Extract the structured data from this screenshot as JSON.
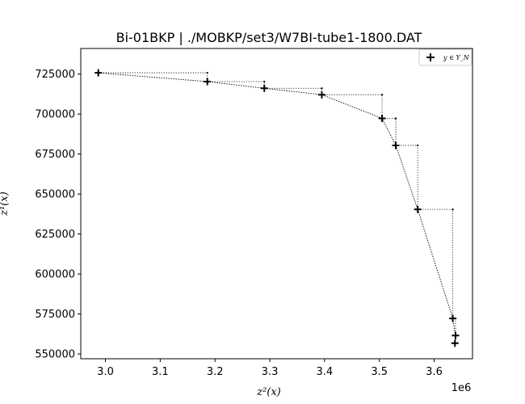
{
  "chart_data": {
    "type": "scatter",
    "title": "Bi-01BKP | ./MOBKP/set3/W7BI-tube1-1800.DAT",
    "xlabel": "z²(x)",
    "ylabel": "z¹(x)",
    "x_offset_label": "1e6",
    "xlim": [
      2.955,
      3.67
    ],
    "ylim": [
      547000,
      741000
    ],
    "x_ticks": [
      3.0,
      3.1,
      3.2,
      3.3,
      3.4,
      3.5,
      3.6
    ],
    "x_tick_labels": [
      "3.0",
      "3.1",
      "3.2",
      "3.3",
      "3.4",
      "3.5",
      "3.6"
    ],
    "y_ticks": [
      550000,
      575000,
      600000,
      625000,
      650000,
      675000,
      700000,
      725000
    ],
    "y_tick_labels": [
      "550000",
      "575000",
      "600000",
      "625000",
      "650000",
      "675000",
      "700000",
      "725000"
    ],
    "legend": {
      "label": "y ∈ Y_N",
      "placement": "top-right"
    },
    "series": [
      {
        "name": "y ∈ Y_N",
        "marker": "plus",
        "points": [
          {
            "x": 2.987,
            "y": 725800
          },
          {
            "x": 3.186,
            "y": 720300
          },
          {
            "x": 3.29,
            "y": 716100
          },
          {
            "x": 3.395,
            "y": 712100
          },
          {
            "x": 3.505,
            "y": 697300
          },
          {
            "x": 3.53,
            "y": 680400
          },
          {
            "x": 3.57,
            "y": 640400
          },
          {
            "x": 3.634,
            "y": 572200
          },
          {
            "x": 3.639,
            "y": 561500
          },
          {
            "x": 3.638,
            "y": 556700
          }
        ]
      }
    ],
    "staircase": [
      {
        "x": 3.186,
        "y": 725800
      },
      {
        "x": 3.29,
        "y": 720300
      },
      {
        "x": 3.395,
        "y": 716100
      },
      {
        "x": 3.505,
        "y": 712100
      },
      {
        "x": 3.53,
        "y": 697300
      },
      {
        "x": 3.57,
        "y": 680400
      },
      {
        "x": 3.634,
        "y": 640400
      },
      {
        "x": 3.639,
        "y": 572200
      }
    ],
    "grid": false
  }
}
